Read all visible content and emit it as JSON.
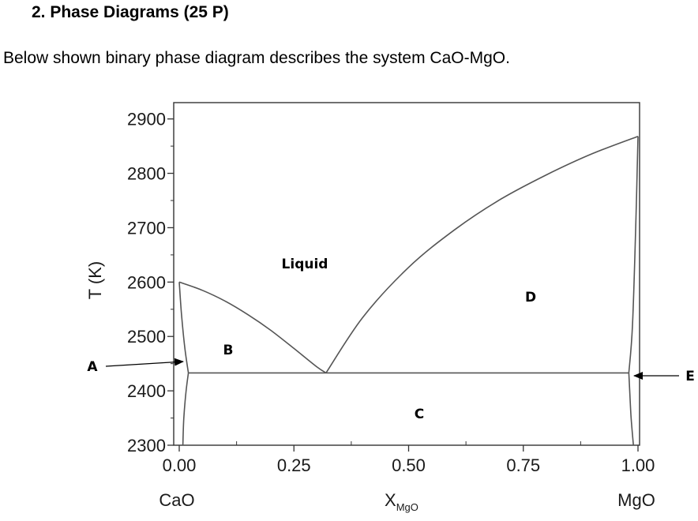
{
  "question": {
    "heading": "2.  Phase Diagrams (25 P)",
    "intro": "Below shown binary phase diagram describes the system CaO-MgO."
  },
  "diagram": {
    "y_axis_label": "T (K)",
    "x_axis_label": "X",
    "x_axis_subscript": "MgO",
    "left_end_label": "CaO",
    "right_end_label": "MgO",
    "region_labels": {
      "liquid": "Liquid",
      "b": "B",
      "c": "C",
      "d": "D"
    },
    "pointer_labels": {
      "a": "A",
      "e": "E"
    }
  },
  "chart_data": {
    "type": "line",
    "x_range": [
      0.0,
      1.0
    ],
    "y_range": [
      2300,
      2930
    ],
    "x_ticks": [
      "0.00",
      "0.25",
      "0.50",
      "0.75",
      "1.00"
    ],
    "x_tick_values": [
      0.0,
      0.25,
      0.5,
      0.75,
      1.0
    ],
    "y_ticks": [
      "2300",
      "2400",
      "2500",
      "2600",
      "2700",
      "2800",
      "2900"
    ],
    "y_tick_values": [
      2300,
      2400,
      2500,
      2600,
      2700,
      2800,
      2900
    ],
    "eutectic": {
      "x": 0.32,
      "T": 2433
    },
    "series": [
      {
        "x": [
          0.0,
          0.05,
          0.1,
          0.15,
          0.2,
          0.25,
          0.3,
          0.32
        ],
        "y": [
          2600,
          2585,
          2565,
          2540,
          2511,
          2478,
          2444,
          2433
        ]
      },
      {
        "x": [
          0.32,
          0.4,
          0.5,
          0.6,
          0.7,
          0.8,
          0.9,
          1.0
        ],
        "y": [
          2433,
          2535,
          2627,
          2696,
          2752,
          2797,
          2836,
          2868
        ]
      },
      {
        "x": [
          0.0,
          0.005,
          0.012,
          0.02
        ],
        "y": [
          2600,
          2540,
          2480,
          2433
        ]
      },
      {
        "x": [
          0.02,
          0.015,
          0.01,
          0.008
        ],
        "y": [
          2433,
          2400,
          2350,
          2300
        ]
      },
      {
        "x": [
          1.0,
          0.995,
          0.988,
          0.98
        ],
        "y": [
          2868,
          2700,
          2520,
          2433
        ]
      },
      {
        "x": [
          0.98,
          0.982,
          0.985,
          0.99
        ],
        "y": [
          2433,
          2400,
          2350,
          2300
        ]
      },
      {
        "x": [
          0.02,
          0.98
        ],
        "y": [
          2433,
          2433
        ]
      }
    ]
  }
}
